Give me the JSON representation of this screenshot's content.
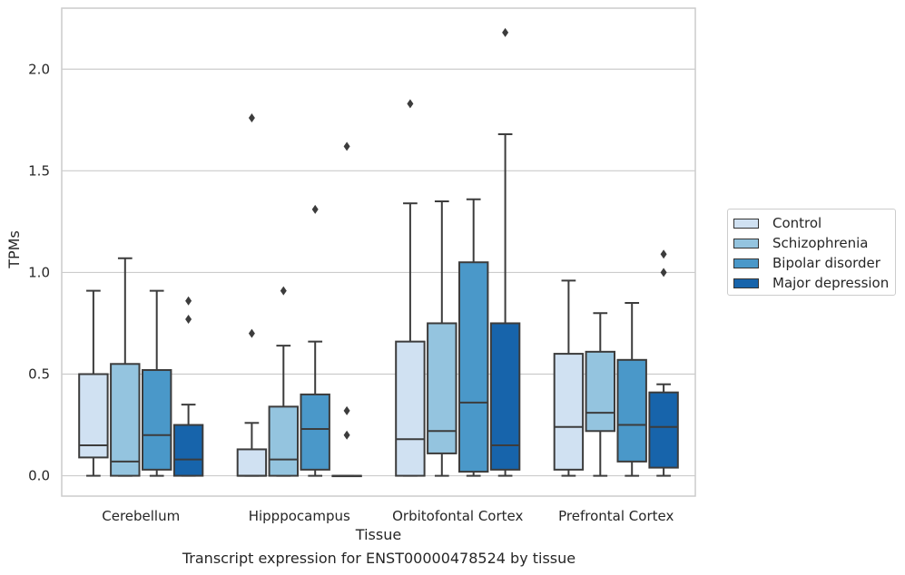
{
  "chart_data": {
    "type": "box",
    "xlabel": "Tissue",
    "ylabel": "TPMs",
    "caption": "Transcript expression for ENST00000478524 by tissue",
    "categories": [
      "Cerebellum",
      "Hipppocampus",
      "Orbitofontal Cortex",
      "Prefrontal Cortex"
    ],
    "ylim": [
      -0.1,
      2.3
    ],
    "yticks": [
      0.0,
      0.5,
      1.0,
      1.5,
      2.0
    ],
    "ytick_labels": [
      "0.0",
      "0.5",
      "1.0",
      "1.5",
      "2.0"
    ],
    "grid": "horizontal",
    "legend_position": "right",
    "series": [
      {
        "name": "Control",
        "color": "#d0e1f2",
        "boxes": [
          {
            "whislo": 0.0,
            "q1": 0.09,
            "med": 0.15,
            "q3": 0.5,
            "whishi": 0.91,
            "fliers": []
          },
          {
            "whislo": 0.0,
            "q1": 0.0,
            "med": 0.0,
            "q3": 0.13,
            "whishi": 0.26,
            "fliers": [
              0.7,
              1.76
            ]
          },
          {
            "whislo": 0.0,
            "q1": 0.0,
            "med": 0.18,
            "q3": 0.66,
            "whishi": 1.34,
            "fliers": [
              1.83
            ]
          },
          {
            "whislo": 0.0,
            "q1": 0.03,
            "med": 0.24,
            "q3": 0.6,
            "whishi": 0.96,
            "fliers": []
          }
        ]
      },
      {
        "name": "Schizophrenia",
        "color": "#94c4df",
        "boxes": [
          {
            "whislo": 0.0,
            "q1": 0.0,
            "med": 0.07,
            "q3": 0.55,
            "whishi": 1.07,
            "fliers": []
          },
          {
            "whislo": 0.0,
            "q1": 0.0,
            "med": 0.08,
            "q3": 0.34,
            "whishi": 0.64,
            "fliers": [
              0.91
            ]
          },
          {
            "whislo": 0.0,
            "q1": 0.11,
            "med": 0.22,
            "q3": 0.75,
            "whishi": 1.35,
            "fliers": []
          },
          {
            "whislo": 0.0,
            "q1": 0.22,
            "med": 0.31,
            "q3": 0.61,
            "whishi": 0.8,
            "fliers": []
          }
        ]
      },
      {
        "name": "Bipolar disorder",
        "color": "#4a98c9",
        "boxes": [
          {
            "whislo": 0.0,
            "q1": 0.03,
            "med": 0.2,
            "q3": 0.52,
            "whishi": 0.91,
            "fliers": []
          },
          {
            "whislo": 0.0,
            "q1": 0.03,
            "med": 0.23,
            "q3": 0.4,
            "whishi": 0.66,
            "fliers": [
              1.31
            ]
          },
          {
            "whislo": 0.0,
            "q1": 0.02,
            "med": 0.36,
            "q3": 1.05,
            "whishi": 1.36,
            "fliers": []
          },
          {
            "whislo": 0.0,
            "q1": 0.07,
            "med": 0.25,
            "q3": 0.57,
            "whishi": 0.85,
            "fliers": []
          }
        ]
      },
      {
        "name": "Major depression",
        "color": "#1764ab",
        "boxes": [
          {
            "whislo": 0.0,
            "q1": 0.0,
            "med": 0.08,
            "q3": 0.25,
            "whishi": 0.35,
            "fliers": [
              0.77,
              0.86
            ]
          },
          {
            "whislo": 0.0,
            "q1": 0.0,
            "med": 0.0,
            "q3": 0.0,
            "whishi": 0.0,
            "fliers": [
              0.2,
              0.32,
              1.62
            ]
          },
          {
            "whislo": 0.0,
            "q1": 0.03,
            "med": 0.15,
            "q3": 0.75,
            "whishi": 1.68,
            "fliers": [
              2.18
            ]
          },
          {
            "whislo": 0.0,
            "q1": 0.04,
            "med": 0.24,
            "q3": 0.41,
            "whishi": 0.45,
            "fliers": [
              1.0,
              1.09
            ]
          }
        ]
      }
    ]
  }
}
